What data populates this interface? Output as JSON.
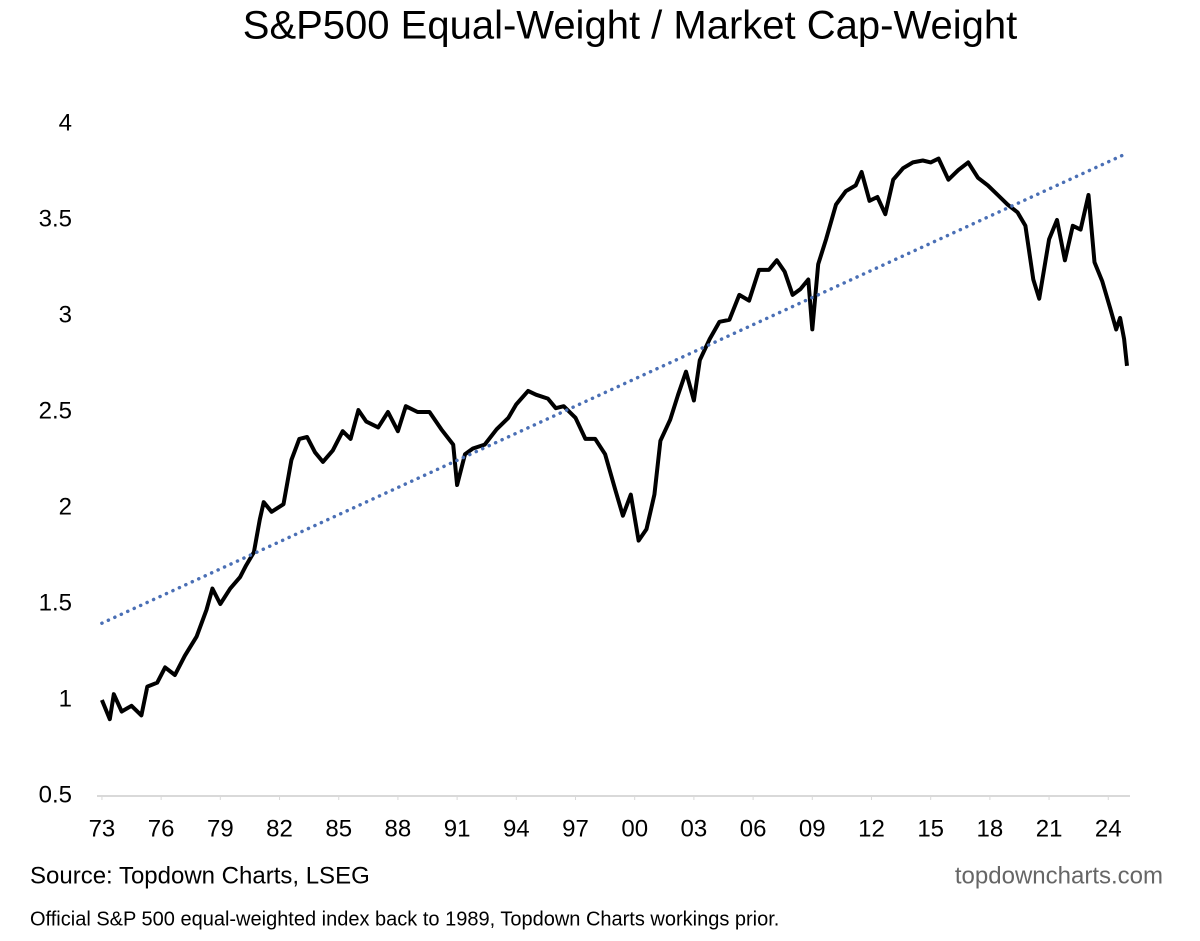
{
  "chart_data": {
    "type": "line",
    "title": "S&P500 Equal-Weight / Market Cap-Weight",
    "source": "Source: Topdown Charts, LSEG",
    "watermark": "topdowncharts.com",
    "note": "Official S&P 500 equal-weighted index back to 1989, Topdown Charts workings prior.",
    "xlim": [
      1972.75,
      2025
    ],
    "ylim": [
      0.5,
      4
    ],
    "yticks": [
      0.5,
      1,
      1.5,
      2,
      2.5,
      3,
      3.5,
      4
    ],
    "xticks": [
      {
        "value": 1973,
        "label": "73"
      },
      {
        "value": 1976,
        "label": "76"
      },
      {
        "value": 1979,
        "label": "79"
      },
      {
        "value": 1982,
        "label": "82"
      },
      {
        "value": 1985,
        "label": "85"
      },
      {
        "value": 1988,
        "label": "88"
      },
      {
        "value": 1991,
        "label": "91"
      },
      {
        "value": 1994,
        "label": "94"
      },
      {
        "value": 1997,
        "label": "97"
      },
      {
        "value": 2000,
        "label": "00"
      },
      {
        "value": 2003,
        "label": "03"
      },
      {
        "value": 2006,
        "label": "06"
      },
      {
        "value": 2009,
        "label": "09"
      },
      {
        "value": 2012,
        "label": "12"
      },
      {
        "value": 2015,
        "label": "15"
      },
      {
        "value": 2018,
        "label": "18"
      },
      {
        "value": 2021,
        "label": "21"
      },
      {
        "value": 2024,
        "label": "24"
      }
    ],
    "grid": false,
    "series": [
      {
        "color": "#000000",
        "style": "solid",
        "x": [
          1973.0,
          1973.4,
          1973.6,
          1974.0,
          1974.5,
          1975.0,
          1975.3,
          1975.8,
          1976.2,
          1976.7,
          1977.2,
          1977.8,
          1978.3,
          1978.6,
          1979.0,
          1979.5,
          1980.0,
          1980.3,
          1980.7,
          1981.0,
          1981.2,
          1981.6,
          1982.2,
          1982.6,
          1983.0,
          1983.4,
          1983.8,
          1984.2,
          1984.7,
          1985.2,
          1985.6,
          1986.0,
          1986.4,
          1987.0,
          1987.5,
          1988.0,
          1988.4,
          1989.0,
          1989.6,
          1990.2,
          1990.8,
          1991.0,
          1991.4,
          1991.8,
          1992.4,
          1993.0,
          1993.6,
          1994.0,
          1994.6,
          1995.0,
          1995.6,
          1996.0,
          1996.4,
          1997.0,
          1997.5,
          1998.0,
          1998.5,
          1999.0,
          1999.4,
          1999.8,
          2000.2,
          2000.6,
          2001.0,
          2001.3,
          2001.8,
          2002.2,
          2002.6,
          2003.0,
          2003.3,
          2003.8,
          2004.3,
          2004.8,
          2005.3,
          2005.8,
          2006.3,
          2006.8,
          2007.2,
          2007.6,
          2008.0,
          2008.4,
          2008.8,
          2009.0,
          2009.3,
          2009.7,
          2010.2,
          2010.7,
          2011.2,
          2011.5,
          2011.9,
          2012.3,
          2012.7,
          2013.1,
          2013.6,
          2014.1,
          2014.6,
          2015.0,
          2015.4,
          2015.9,
          2016.4,
          2016.9,
          2017.4,
          2017.9,
          2018.4,
          2018.9,
          2019.4,
          2019.8,
          2020.2,
          2020.5,
          2021.0,
          2021.4,
          2021.8,
          2022.2,
          2022.6,
          2023.0,
          2023.3,
          2023.7,
          2024.1,
          2024.4,
          2024.6,
          2024.8,
          2024.95
        ],
        "values": [
          1.0,
          0.9,
          1.03,
          0.94,
          0.97,
          0.92,
          1.07,
          1.09,
          1.17,
          1.13,
          1.23,
          1.33,
          1.47,
          1.58,
          1.5,
          1.58,
          1.64,
          1.7,
          1.77,
          1.94,
          2.03,
          1.98,
          2.02,
          2.25,
          2.36,
          2.37,
          2.29,
          2.24,
          2.3,
          2.4,
          2.36,
          2.51,
          2.45,
          2.42,
          2.5,
          2.4,
          2.53,
          2.5,
          2.5,
          2.41,
          2.33,
          2.12,
          2.28,
          2.31,
          2.33,
          2.41,
          2.47,
          2.54,
          2.61,
          2.59,
          2.57,
          2.52,
          2.53,
          2.47,
          2.36,
          2.36,
          2.28,
          2.1,
          1.96,
          2.07,
          1.83,
          1.89,
          2.07,
          2.35,
          2.46,
          2.59,
          2.71,
          2.56,
          2.77,
          2.88,
          2.97,
          2.98,
          3.11,
          3.08,
          3.24,
          3.24,
          3.29,
          3.23,
          3.11,
          3.14,
          3.19,
          2.93,
          3.27,
          3.4,
          3.58,
          3.65,
          3.68,
          3.75,
          3.6,
          3.62,
          3.53,
          3.71,
          3.77,
          3.8,
          3.81,
          3.8,
          3.82,
          3.71,
          3.76,
          3.8,
          3.72,
          3.68,
          3.63,
          3.58,
          3.54,
          3.47,
          3.19,
          3.09,
          3.4,
          3.5,
          3.29,
          3.47,
          3.45,
          3.63,
          3.28,
          3.18,
          3.04,
          2.93,
          2.99,
          2.88,
          2.74
        ]
      },
      {
        "color": "#4a6fb5",
        "style": "dotted",
        "x": [
          1973.0,
          2025.0
        ],
        "values": [
          1.4,
          3.85
        ]
      }
    ]
  }
}
